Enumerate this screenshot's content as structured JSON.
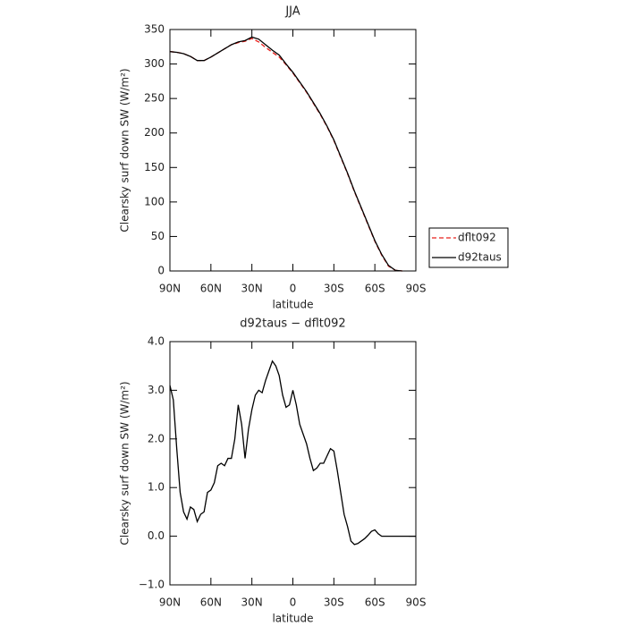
{
  "chart_data": [
    {
      "type": "line",
      "title": "JJA",
      "xlabel": "latitude",
      "ylabel": "Clearsky surf down SW (W/m²)",
      "x": [
        90,
        85,
        80,
        75,
        70,
        65,
        60,
        55,
        50,
        45,
        40,
        35,
        30,
        25,
        20,
        15,
        10,
        5,
        0,
        -5,
        -10,
        -15,
        -20,
        -25,
        -30,
        -35,
        -40,
        -45,
        -50,
        -55,
        -60,
        -65,
        -70,
        -75,
        -80
      ],
      "series": [
        {
          "name": "dflt092",
          "color": "#e8201c",
          "dashed": true,
          "values": [
            318,
            317,
            315,
            311,
            305,
            305,
            310,
            316,
            322,
            328,
            331,
            333,
            337,
            332,
            324,
            317,
            310,
            299,
            287,
            273,
            259,
            243,
            227,
            209,
            189,
            165,
            141,
            115,
            91,
            67,
            43,
            23,
            7,
            1,
            0
          ]
        },
        {
          "name": "d92taus",
          "color": "#000000",
          "dashed": false,
          "values": [
            318,
            317,
            315,
            311,
            305,
            305,
            310,
            316,
            322,
            328,
            332,
            334,
            339,
            336,
            328,
            320,
            313,
            300,
            288,
            274,
            260,
            244,
            228,
            210,
            190,
            166,
            142,
            116,
            92,
            68,
            44,
            24,
            8,
            1,
            0
          ]
        }
      ],
      "xlim": [
        90,
        -90
      ],
      "xticks": [
        {
          "value": 90,
          "label": "90N"
        },
        {
          "value": 60,
          "label": "60N"
        },
        {
          "value": 30,
          "label": "30N"
        },
        0,
        {
          "value": -30,
          "label": "30S"
        },
        {
          "value": -60,
          "label": "60S"
        },
        {
          "value": -90,
          "label": "90S"
        }
      ],
      "ylim": [
        0,
        350
      ],
      "yticks": [
        0,
        50,
        100,
        150,
        200,
        250,
        300,
        350
      ],
      "legend": "right"
    },
    {
      "type": "line",
      "title": "d92taus − dflt092",
      "xlabel": "latitude",
      "ylabel": "Clearsky surf down SW (W/m²)",
      "x": [
        90,
        87.5,
        85,
        82.5,
        80,
        77.5,
        75,
        72.5,
        70,
        67.5,
        65,
        62.5,
        60,
        57.5,
        55,
        52.5,
        50,
        47.5,
        45,
        42.5,
        40,
        37.5,
        35,
        32.5,
        30,
        27.5,
        25,
        22.5,
        20,
        17.5,
        15,
        12.5,
        10,
        7.5,
        5,
        2.5,
        0,
        -2.5,
        -5,
        -7.5,
        -10,
        -12.5,
        -15,
        -17.5,
        -20,
        -22.5,
        -25,
        -27.5,
        -30,
        -32.5,
        -35,
        -37.5,
        -40,
        -42.5,
        -45,
        -47.5,
        -50,
        -52.5,
        -55,
        -57.5,
        -60,
        -62.5,
        -65,
        -67.5,
        -70,
        -72.5,
        -75,
        -77.5,
        -80,
        -82.5,
        -85,
        -87.5,
        -90
      ],
      "series": [
        {
          "name": "d92taus − dflt092",
          "color": "#000000",
          "dashed": false,
          "values": [
            3.1,
            2.8,
            1.8,
            0.9,
            0.5,
            0.35,
            0.6,
            0.55,
            0.3,
            0.45,
            0.5,
            0.9,
            0.95,
            1.1,
            1.45,
            1.5,
            1.45,
            1.6,
            1.6,
            2.0,
            2.7,
            2.3,
            1.6,
            2.2,
            2.6,
            2.9,
            3.0,
            2.95,
            3.2,
            3.4,
            3.6,
            3.5,
            3.3,
            2.9,
            2.65,
            2.7,
            3.0,
            2.7,
            2.3,
            2.1,
            1.9,
            1.6,
            1.35,
            1.4,
            1.5,
            1.5,
            1.65,
            1.8,
            1.75,
            1.35,
            0.9,
            0.45,
            0.2,
            -0.1,
            -0.17,
            -0.15,
            -0.1,
            -0.05,
            0.02,
            0.1,
            0.13,
            0.05,
            0.0,
            0.0,
            0.0,
            0.0,
            0.0,
            0.0,
            0.0,
            0.0,
            0.0,
            0.0,
            0.0
          ]
        }
      ],
      "xlim": [
        90,
        -90
      ],
      "xticks": [
        {
          "value": 90,
          "label": "90N"
        },
        {
          "value": 60,
          "label": "60N"
        },
        {
          "value": 30,
          "label": "30N"
        },
        0,
        {
          "value": -30,
          "label": "30S"
        },
        {
          "value": -60,
          "label": "60S"
        },
        {
          "value": -90,
          "label": "90S"
        }
      ],
      "ylim": [
        -1,
        4
      ],
      "yticks": [
        {
          "value": -1,
          "label": "−1.0"
        },
        {
          "value": 0,
          "label": "0.0"
        },
        {
          "value": 1,
          "label": "1.0"
        },
        {
          "value": 2,
          "label": "2.0"
        },
        {
          "value": 3,
          "label": "3.0"
        },
        {
          "value": 4,
          "label": "4.0"
        }
      ]
    }
  ]
}
